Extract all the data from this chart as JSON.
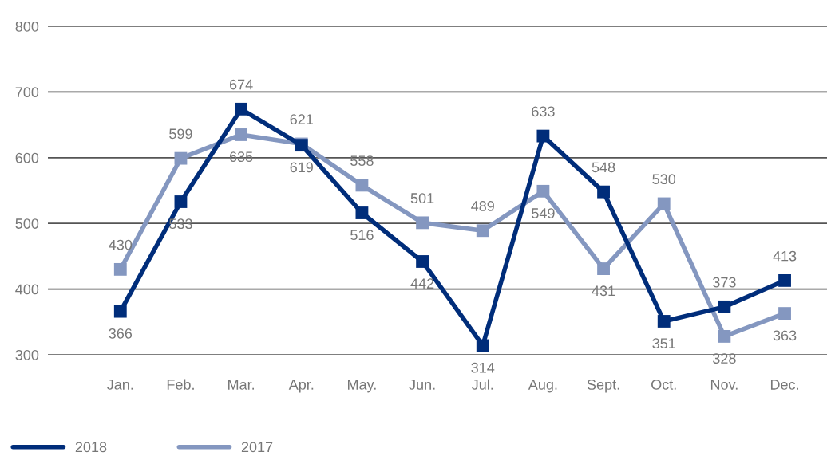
{
  "chart_data": {
    "type": "line",
    "categories": [
      "Jan.",
      "Feb.",
      "Mar.",
      "Apr.",
      "May.",
      "Jun.",
      "Jul.",
      "Aug.",
      "Sept.",
      "Oct.",
      "Nov.",
      "Dec."
    ],
    "series": [
      {
        "name": "2018",
        "color": "#002d7a",
        "values": [
          366,
          533,
          674,
          619,
          516,
          442,
          314,
          633,
          548,
          351,
          373,
          413
        ]
      },
      {
        "name": "2017",
        "color": "#8497c0",
        "values": [
          430,
          599,
          635,
          621,
          558,
          501,
          489,
          549,
          431,
          530,
          328,
          363
        ]
      }
    ],
    "ylim": [
      300,
      800
    ],
    "yticks": [
      300,
      400,
      500,
      600,
      700,
      800
    ],
    "grid": "y",
    "legend": "bottom left",
    "marker": "square",
    "line_style": "solid",
    "data_labels": true
  }
}
